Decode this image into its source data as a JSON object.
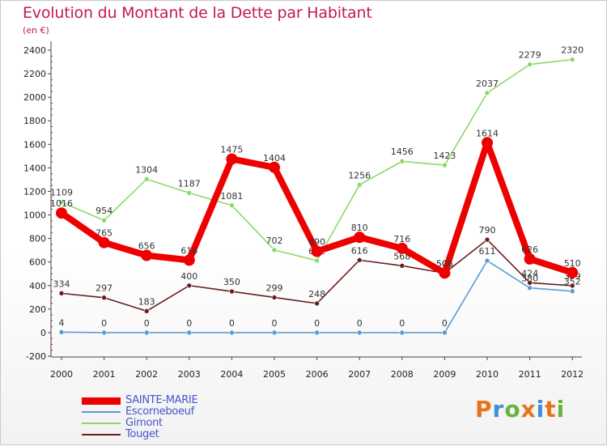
{
  "header": {
    "title": "Evolution du Montant de la Dette par Habitant",
    "subtitle": "(en €)"
  },
  "logo": {
    "text": "Proxiti",
    "colors": [
      "#e8731a",
      "#3c8fd6",
      "#6ab33e",
      "#e8731a",
      "#3c8fd6",
      "#e8731a",
      "#6ab33e"
    ]
  },
  "chart_data": {
    "type": "line",
    "title": "Evolution du Montant de la Dette par Habitant",
    "subtitle": "(en €)",
    "xlabel": "",
    "ylabel": "",
    "categories": [
      "2000",
      "2001",
      "2002",
      "2003",
      "2004",
      "2005",
      "2006",
      "2007",
      "2008",
      "2009",
      "2010",
      "2011",
      "2012"
    ],
    "ylim": [
      -200,
      2400
    ],
    "yticks": [
      -200,
      0,
      200,
      400,
      600,
      800,
      1000,
      1200,
      1400,
      1600,
      1800,
      2000,
      2200,
      2400
    ],
    "grid": false,
    "legend_position": "bottom-left",
    "series": [
      {
        "name": "Escorneboeuf",
        "color": "#5b9bd5",
        "values": [
          4,
          0,
          0,
          0,
          0,
          0,
          0,
          0,
          0,
          0,
          611,
          380,
          352
        ],
        "labels": [
          "4",
          "0",
          "0",
          "0",
          "0",
          "0",
          "0",
          "0",
          "0",
          "0",
          "611",
          "380",
          "352"
        ]
      },
      {
        "name": "Touget",
        "color": "#6b1e1e",
        "values": [
          334,
          297,
          183,
          400,
          350,
          299,
          248,
          616,
          568,
          506,
          790,
          424,
          399
        ],
        "labels": [
          "334",
          "297",
          "183",
          "400",
          "350",
          "299",
          "248",
          "616",
          "568",
          "506",
          "790",
          "424",
          "399"
        ]
      },
      {
        "name": "Gimont",
        "color": "#8ed86a",
        "values": [
          1109,
          954,
          1304,
          1187,
          1081,
          702,
          612,
          1256,
          1456,
          1423,
          2037,
          2279,
          2320
        ],
        "labels": [
          "1109",
          "954",
          "1304",
          "1187",
          "1081",
          "702",
          "612",
          "1256",
          "1456",
          "1423",
          "2037",
          "2279",
          "2320"
        ]
      },
      {
        "name": "SAINTE-MARIE",
        "color": "#ee0000",
        "values": [
          1016,
          765,
          656,
          616,
          1475,
          1404,
          690,
          810,
          716,
          506,
          1614,
          626,
          510
        ],
        "labels": [
          "1016",
          "765",
          "656",
          "616",
          "1475",
          "1404",
          "690",
          "810",
          "716",
          "506",
          "1614",
          "626",
          "510"
        ]
      }
    ],
    "legend": [
      {
        "name": "SAINTE-MARIE",
        "color": "#ee0000"
      },
      {
        "name": "Escorneboeuf",
        "color": "#5b9bd5"
      },
      {
        "name": "Gimont",
        "color": "#8ed86a"
      },
      {
        "name": "Touget",
        "color": "#6b1e1e"
      }
    ]
  }
}
